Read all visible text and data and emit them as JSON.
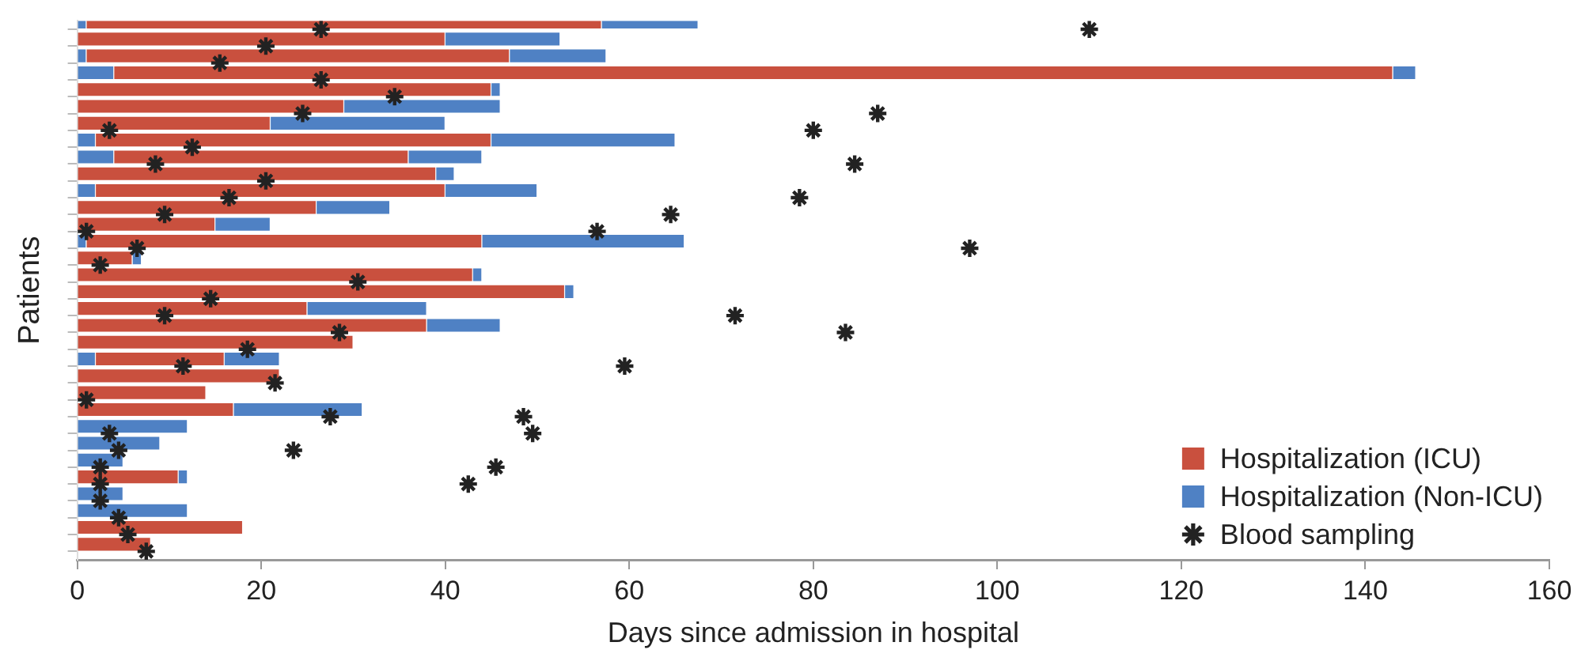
{
  "chart_data": {
    "type": "bar",
    "orientation": "horizontal",
    "stacked": true,
    "xlabel": "Days since admission in hospital",
    "ylabel": "Patients",
    "categories": [
      null,
      null,
      null,
      null,
      null,
      null,
      null,
      null,
      null,
      null,
      null,
      null,
      null,
      null,
      null,
      null,
      null,
      null,
      null,
      null,
      null,
      null,
      null,
      null,
      null,
      null,
      null,
      null,
      null,
      null,
      null,
      null
    ],
    "series": [
      {
        "color": "#4f81c4",
        "values": [
          1,
          0,
          1,
          4,
          0,
          0,
          0,
          2,
          4,
          0,
          2,
          0,
          0,
          1,
          0,
          0,
          0,
          0,
          0,
          0,
          2,
          0,
          0,
          0,
          12,
          9,
          5,
          0,
          5,
          12,
          0,
          0
        ]
      },
      {
        "name": "Hospitalization (ICU)",
        "color": "#c9503e",
        "values": [
          56,
          40,
          46,
          139,
          45,
          29,
          21,
          43,
          32,
          39,
          38,
          26,
          15,
          43,
          6,
          43,
          53,
          25,
          38,
          30,
          14,
          22,
          14,
          17,
          null,
          null,
          null,
          11,
          null,
          null,
          18,
          8
        ]
      },
      {
        "name": "Hospitalization (Non-ICU)",
        "color": "#4f81c4",
        "values": [
          10.5,
          12.5,
          10.5,
          2.5,
          1,
          17,
          19,
          20,
          8,
          2,
          10,
          8,
          6,
          22,
          1,
          1,
          1,
          13,
          8,
          null,
          6,
          null,
          null,
          14,
          null,
          null,
          null,
          1,
          null,
          null,
          null,
          null
        ]
      },
      {
        "name": "Blood sampling",
        "type": "scatter",
        "color": "#222222",
        "values": [
          26.5,
          20.5,
          15.5,
          26.5,
          34.5,
          24.5,
          3.5,
          12.5,
          8.5,
          20.5,
          16.5,
          9.5,
          1,
          6.5,
          2.5,
          30.5,
          14.5,
          9.5,
          28.5,
          18.5,
          11.5,
          21.5,
          1,
          27.5,
          3.5,
          4.5,
          2.5,
          2.5,
          2.5,
          4.5,
          5.5,
          7.5
        ]
      },
      {
        "type": "scatter",
        "color": "#222222",
        "values": [
          110,
          null,
          null,
          null,
          null,
          87,
          80,
          null,
          84.5,
          null,
          78.5,
          64.5,
          56.5,
          97,
          null,
          null,
          null,
          71.5,
          83.5,
          null,
          59.5,
          null,
          null,
          48.5,
          49.5,
          23.5,
          45.5,
          42.5,
          null,
          null,
          null,
          null
        ]
      }
    ],
    "marker": "cross",
    "xlim": [
      0,
      160
    ],
    "xticks": [
      0,
      20,
      40,
      60,
      80,
      100,
      120,
      140,
      160
    ],
    "grid": false,
    "legend": "bottom right"
  }
}
